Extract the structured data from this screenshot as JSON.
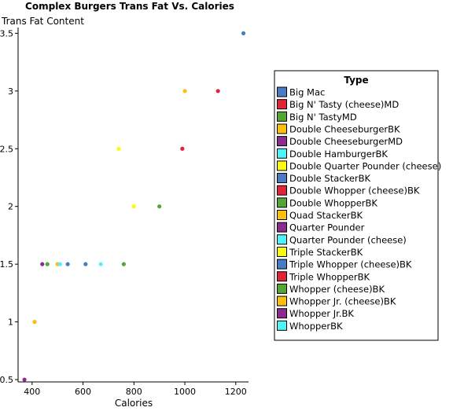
{
  "chart_data": {
    "type": "scatter",
    "title": "Complex Burgers Trans Fat Vs. Calories",
    "xlabel": "Calories",
    "ylabel": "Trans Fat Content",
    "xlim": [
      345,
      1250
    ],
    "ylim": [
      0.48,
      3.55
    ],
    "x_ticks": [
      400,
      600,
      800,
      1000,
      1200
    ],
    "y_ticks": [
      0.5,
      1,
      1.5,
      2,
      2.5,
      3,
      3.5
    ],
    "grid": false,
    "legend_title": "Type",
    "legend_position": "right",
    "series": [
      {
        "name": "Big Mac",
        "color": "#4a7bc5",
        "x": [
          540
        ],
        "y": [
          1.5
        ]
      },
      {
        "name": "Big N' Tasty (cheese)MD",
        "color": "#e0253a",
        "x": [],
        "y": []
      },
      {
        "name": "Big N' TastyMD",
        "color": "#55a535",
        "x": [
          460
        ],
        "y": [
          1.5
        ]
      },
      {
        "name": "Double CheeseburgerBK",
        "color": "#fbc00e",
        "x": [
          500
        ],
        "y": [
          1.5
        ]
      },
      {
        "name": "Double CheeseburgerMD",
        "color": "#8b2b8e",
        "x": [
          440
        ],
        "y": [
          1.5
        ]
      },
      {
        "name": "Double HamburgerBK",
        "color": "#4ff3fa",
        "x": [
          510
        ],
        "y": [
          1.5
        ]
      },
      {
        "name": "Double Quarter Pounder (cheese)",
        "color": "#fbfb0f",
        "x": [
          740
        ],
        "y": [
          2.5
        ]
      },
      {
        "name": "Double StackerBK",
        "color": "#4a7bc5",
        "x": [
          610
        ],
        "y": [
          1.5
        ]
      },
      {
        "name": "Double Whopper (cheese)BK",
        "color": "#e0253a",
        "x": [
          990
        ],
        "y": [
          2.5
        ]
      },
      {
        "name": "Double WhopperBK",
        "color": "#55a535",
        "x": [
          900
        ],
        "y": [
          2
        ]
      },
      {
        "name": "Quad StackerBK",
        "color": "#fbc00e",
        "x": [
          1000
        ],
        "y": [
          3
        ]
      },
      {
        "name": "Quarter Pounder",
        "color": "#8b2b8e",
        "x": [],
        "y": []
      },
      {
        "name": "Quarter Pounder (cheese)",
        "color": "#4ff3fa",
        "x": [
          670
        ],
        "y": [
          1.5
        ]
      },
      {
        "name": "Triple StackerBK",
        "color": "#fbfb0f",
        "x": [
          800
        ],
        "y": [
          2
        ]
      },
      {
        "name": "Triple Whopper (cheese)BK",
        "color": "#4a7bc5",
        "x": [
          1230
        ],
        "y": [
          3.5
        ]
      },
      {
        "name": "Triple WhopperBK",
        "color": "#e0253a",
        "x": [
          1130
        ],
        "y": [
          3
        ]
      },
      {
        "name": "Whopper (cheese)BK",
        "color": "#55a535",
        "x": [
          760
        ],
        "y": [
          1.5
        ]
      },
      {
        "name": "Whopper Jr. (cheese)BK",
        "color": "#fbc00e",
        "x": [
          410
        ],
        "y": [
          1
        ]
      },
      {
        "name": "Whopper Jr.BK",
        "color": "#8b2b8e",
        "x": [
          370
        ],
        "y": [
          0.5
        ]
      },
      {
        "name": "WhopperBK",
        "color": "#4ff3fa",
        "x": [],
        "y": []
      }
    ]
  }
}
